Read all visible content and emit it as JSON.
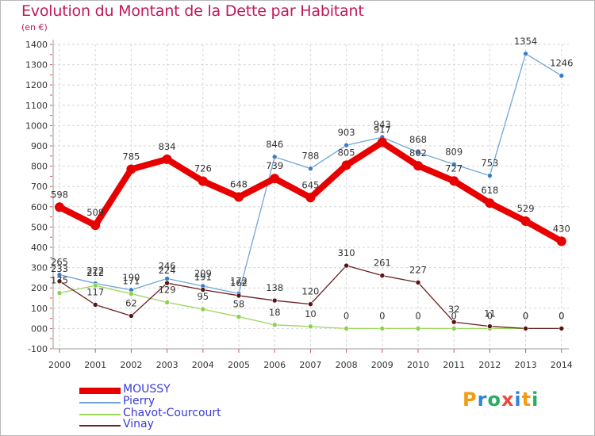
{
  "title": "Evolution du Montant de la Dette par Habitant",
  "unit_label": "(en €)",
  "logo": {
    "letters": [
      "P",
      "r",
      "o",
      "x",
      "i",
      "t",
      "i"
    ],
    "colors": [
      "#f39c12",
      "#2e86de",
      "#27ae60",
      "#e74c3c",
      "#2e86de",
      "#f39c12",
      "#27ae60"
    ]
  },
  "chart_data": {
    "type": "line",
    "x": [
      2000,
      2001,
      2002,
      2003,
      2004,
      2005,
      2006,
      2007,
      2008,
      2009,
      2010,
      2011,
      2012,
      2013,
      2014
    ],
    "ylim": [
      -100,
      1400
    ],
    "yticks": [
      -100,
      0,
      100,
      200,
      300,
      400,
      500,
      600,
      700,
      800,
      900,
      1000,
      1100,
      1200,
      1300,
      1400
    ],
    "ytick_labels": [
      "-100",
      "000",
      "100",
      "200",
      "300",
      "400",
      "500",
      "600",
      "700",
      "800",
      "900",
      "1000",
      "1100",
      "1200",
      "1300",
      "1400"
    ],
    "grid": true,
    "legend_position": "bottom-left",
    "series": [
      {
        "name": "MOUSSY",
        "color": "#e80000",
        "width": 8,
        "marker": 6,
        "values": [
          598,
          509,
          785,
          834,
          726,
          648,
          739,
          645,
          805,
          917,
          802,
          727,
          618,
          529,
          430
        ],
        "labels": [
          "598",
          "509",
          "785",
          "834",
          "726",
          "648",
          "739",
          "645",
          "805",
          "917",
          "802",
          "727",
          "618",
          "529",
          "430"
        ]
      },
      {
        "name": "Pierry",
        "color": "#6fa6d8",
        "width": 1.3,
        "marker": 3,
        "values": [
          265,
          222,
          190,
          246,
          209,
          172,
          846,
          788,
          903,
          943,
          868,
          809,
          753,
          1354,
          1246
        ],
        "labels": [
          "265",
          "222",
          "190",
          "246",
          "209",
          "172",
          "846",
          "788",
          "903",
          "943",
          "868",
          "809",
          "753",
          "1354",
          "1246"
        ]
      },
      {
        "name": "Chavot-Courcourt",
        "color": "#9ad65a",
        "width": 1.3,
        "marker": 3,
        "values": [
          175,
          212,
          171,
          129,
          95,
          58,
          18,
          10,
          0,
          0,
          0,
          0,
          0,
          0,
          0
        ],
        "labels": [
          "175",
          "212",
          "171",
          "129",
          "95",
          "58",
          "18",
          "10",
          "0",
          "0",
          "0",
          "0",
          "0",
          "0",
          "0"
        ]
      },
      {
        "name": "Vinay",
        "color": "#6b1e1e",
        "width": 1.3,
        "marker": 3,
        "values": [
          233,
          117,
          62,
          224,
          191,
          162,
          138,
          120,
          310,
          261,
          227,
          32,
          11,
          0,
          0
        ],
        "labels": [
          "233",
          "117",
          "62",
          "224",
          "191",
          "162",
          "138",
          "120",
          "310",
          "261",
          "227",
          "32",
          "11",
          "0",
          "0"
        ]
      }
    ]
  }
}
